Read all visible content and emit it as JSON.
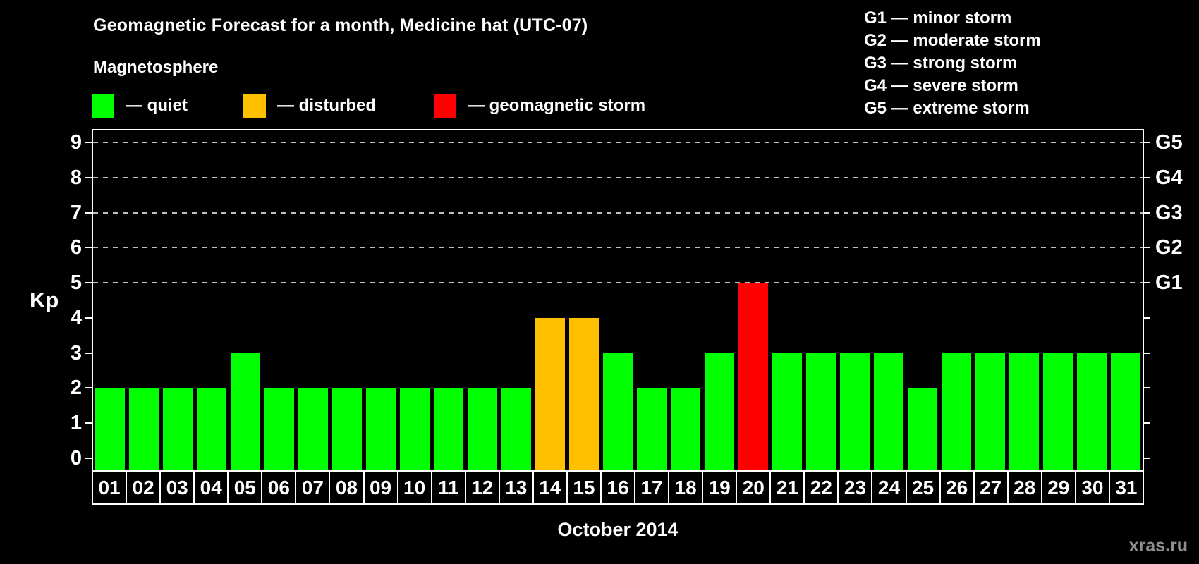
{
  "header": {
    "title": "Geomagnetic Forecast for a month, Medicine hat (UTC-07)"
  },
  "magnetosphere_legend": {
    "title": "Magnetosphere",
    "items": [
      {
        "status": "quiet",
        "label": "— quiet",
        "color": "#00ff00"
      },
      {
        "status": "disturbed",
        "label": "— disturbed",
        "color": "#ffc000"
      },
      {
        "status": "storm",
        "label": "— geomagnetic storm",
        "color": "#ff0000"
      }
    ]
  },
  "g_scale_legend": {
    "items": [
      {
        "code": "G1",
        "label": "G1 — minor storm"
      },
      {
        "code": "G2",
        "label": "G2 — moderate storm"
      },
      {
        "code": "G3",
        "label": "G3 — strong storm"
      },
      {
        "code": "G4",
        "label": "G4 — severe storm"
      },
      {
        "code": "G5",
        "label": "G5 — extreme storm"
      }
    ]
  },
  "chart_data": {
    "type": "bar",
    "title": "Geomagnetic Forecast for a month, Medicine hat (UTC-07)",
    "xlabel": "October 2014",
    "ylabel": "Kp",
    "ylim": [
      0,
      9
    ],
    "categories": [
      "01",
      "02",
      "03",
      "04",
      "05",
      "06",
      "07",
      "08",
      "09",
      "10",
      "11",
      "12",
      "13",
      "14",
      "15",
      "16",
      "17",
      "18",
      "19",
      "20",
      "21",
      "22",
      "23",
      "24",
      "25",
      "26",
      "27",
      "28",
      "29",
      "30",
      "31"
    ],
    "values": [
      2,
      2,
      2,
      2,
      3,
      2,
      2,
      2,
      2,
      2,
      2,
      2,
      2,
      4,
      4,
      3,
      2,
      2,
      3,
      5,
      3,
      3,
      3,
      3,
      2,
      3,
      3,
      3,
      3,
      3,
      3
    ],
    "statuses": [
      "quiet",
      "quiet",
      "quiet",
      "quiet",
      "quiet",
      "quiet",
      "quiet",
      "quiet",
      "quiet",
      "quiet",
      "quiet",
      "quiet",
      "quiet",
      "disturbed",
      "disturbed",
      "quiet",
      "quiet",
      "quiet",
      "quiet",
      "storm",
      "quiet",
      "quiet",
      "quiet",
      "quiet",
      "quiet",
      "quiet",
      "quiet",
      "quiet",
      "quiet",
      "quiet",
      "quiet"
    ],
    "status_colors": {
      "quiet": "#00ff00",
      "disturbed": "#ffc000",
      "storm": "#ff0000"
    },
    "yticks_left": [
      "0",
      "1",
      "2",
      "3",
      "4",
      "5",
      "6",
      "7",
      "8",
      "9"
    ],
    "yticks_right": [
      {
        "kp": 5,
        "label": "G1"
      },
      {
        "kp": 6,
        "label": "G2"
      },
      {
        "kp": 7,
        "label": "G3"
      },
      {
        "kp": 8,
        "label": "G4"
      },
      {
        "kp": 9,
        "label": "G5"
      }
    ],
    "gridlines_kp": [
      5,
      6,
      7,
      8,
      9
    ],
    "grid_style": "dashed",
    "legend_position": "top-left",
    "background": "#000000"
  },
  "footer": {
    "watermark": "xras.ru"
  }
}
